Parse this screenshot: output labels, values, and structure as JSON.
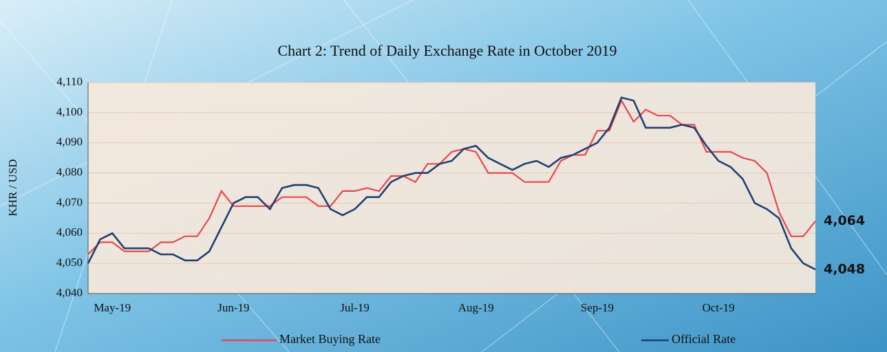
{
  "chart_data": {
    "type": "line",
    "title": "Chart 2: Trend of Daily Exchange Rate in October 2019",
    "y_label": "KHR / USD",
    "categories": [
      null,
      null,
      "May-19",
      null,
      null,
      null,
      null,
      null,
      null,
      null,
      null,
      null,
      "Jun-19",
      null,
      null,
      null,
      null,
      null,
      null,
      null,
      null,
      null,
      "Jul-19",
      null,
      null,
      null,
      null,
      null,
      null,
      null,
      null,
      null,
      "Aug-19",
      null,
      null,
      null,
      null,
      null,
      null,
      null,
      null,
      null,
      "Sep-19",
      null,
      null,
      null,
      null,
      null,
      null,
      null,
      null,
      null,
      "Oct-19",
      null,
      null,
      null,
      null,
      null,
      null,
      null,
      null
    ],
    "series": [
      {
        "name": "Market Buying Rate",
        "color": "#e8474c",
        "values": [
          4053,
          4057,
          4057,
          4054,
          4054,
          4054,
          4057,
          4057,
          4059,
          4059,
          4065,
          4074,
          4069,
          4069,
          4069,
          4069,
          4072,
          4072,
          4072,
          4069,
          4069,
          4074,
          4074,
          4075,
          4074,
          4079,
          4079,
          4077,
          4083,
          4083,
          4087,
          4088,
          4087,
          4080,
          4080,
          4080,
          4077,
          4077,
          4077,
          4084,
          4086,
          4086,
          4094,
          4094,
          4104,
          4097,
          4101,
          4099,
          4099,
          4096,
          4096,
          4087,
          4087,
          4087,
          4085,
          4084,
          4080,
          4067,
          4059,
          4059,
          4064
        ],
        "value_labels": [
          null,
          null,
          null,
          null,
          null,
          null,
          null,
          null,
          null,
          null,
          null,
          null,
          null,
          null,
          null,
          null,
          null,
          null,
          null,
          null,
          null,
          null,
          null,
          null,
          null,
          null,
          null,
          null,
          null,
          null,
          null,
          null,
          null,
          null,
          null,
          null,
          null,
          null,
          null,
          null,
          null,
          null,
          null,
          null,
          null,
          null,
          null,
          null,
          null,
          null,
          null,
          null,
          null,
          null,
          null,
          null,
          null,
          null,
          null,
          null,
          "4,064"
        ],
        "label_color": "#c0222b"
      },
      {
        "name": "Official Rate",
        "color": "#1f3f73",
        "values": [
          4050,
          4058,
          4060,
          4055,
          4055,
          4055,
          4053,
          4053,
          4051,
          4051,
          4054,
          4062,
          4070,
          4072,
          4072,
          4068,
          4075,
          4076,
          4076,
          4075,
          4068,
          4066,
          4068,
          4072,
          4072,
          4077,
          4079,
          4080,
          4080,
          4083,
          4084,
          4088,
          4089,
          4085,
          4083,
          4081,
          4083,
          4084,
          4082,
          4085,
          4086,
          4088,
          4090,
          4095,
          4105,
          4104,
          4095,
          4095,
          4095,
          4096,
          4095,
          4089,
          4084,
          4082,
          4078,
          4070,
          4068,
          4065,
          4055,
          4050,
          4048
        ],
        "value_labels": [
          null,
          null,
          null,
          null,
          null,
          null,
          null,
          null,
          null,
          null,
          null,
          null,
          null,
          null,
          null,
          null,
          null,
          null,
          null,
          null,
          null,
          null,
          null,
          null,
          null,
          null,
          null,
          null,
          null,
          null,
          null,
          null,
          null,
          null,
          null,
          null,
          null,
          null,
          null,
          null,
          null,
          null,
          null,
          null,
          null,
          null,
          null,
          null,
          null,
          null,
          null,
          null,
          null,
          null,
          null,
          null,
          null,
          null,
          null,
          null,
          "4,048"
        ],
        "label_color": "#1f4e85"
      }
    ],
    "ylim": [
      4040,
      4110
    ],
    "yticks": [
      {
        "value": 4040,
        "label": "4,040"
      },
      {
        "value": 4050,
        "label": "4,050"
      },
      {
        "value": 4060,
        "label": "4,060"
      },
      {
        "value": 4070,
        "label": "4,070"
      },
      {
        "value": 4080,
        "label": "4,080"
      },
      {
        "value": 4090,
        "label": "4,090"
      },
      {
        "value": 4100,
        "label": "4,100"
      },
      {
        "value": 4110,
        "label": "4,110"
      }
    ],
    "grid": true,
    "legend": "bottom"
  }
}
